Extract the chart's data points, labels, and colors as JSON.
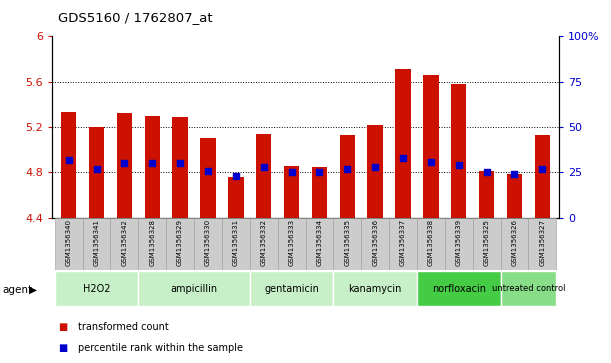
{
  "title": "GDS5160 / 1762807_at",
  "samples": [
    "GSM1356340",
    "GSM1356341",
    "GSM1356342",
    "GSM1356328",
    "GSM1356329",
    "GSM1356330",
    "GSM1356331",
    "GSM1356332",
    "GSM1356333",
    "GSM1356334",
    "GSM1356335",
    "GSM1356336",
    "GSM1356337",
    "GSM1356338",
    "GSM1356339",
    "GSM1356325",
    "GSM1356326",
    "GSM1356327"
  ],
  "transformed_count": [
    5.33,
    5.2,
    5.32,
    5.3,
    5.29,
    5.1,
    4.76,
    5.14,
    4.86,
    4.85,
    5.13,
    5.22,
    5.71,
    5.66,
    5.58,
    4.81,
    4.79,
    5.13
  ],
  "percentile_rank": [
    32,
    27,
    30,
    30,
    30,
    26,
    23,
    28,
    25,
    25,
    27,
    28,
    33,
    31,
    29,
    25,
    24,
    27
  ],
  "group_boundaries": [
    {
      "label": "H2O2",
      "start": 0,
      "end": 2,
      "color": "#c8f0c8"
    },
    {
      "label": "ampicillin",
      "start": 3,
      "end": 6,
      "color": "#c8f0c8"
    },
    {
      "label": "gentamicin",
      "start": 7,
      "end": 9,
      "color": "#c8f0c8"
    },
    {
      "label": "kanamycin",
      "start": 10,
      "end": 12,
      "color": "#c8f0c8"
    },
    {
      "label": "norfloxacin",
      "start": 13,
      "end": 15,
      "color": "#44cc44"
    },
    {
      "label": "untreated control",
      "start": 16,
      "end": 17,
      "color": "#88dd88"
    }
  ],
  "bar_color": "#cc1100",
  "dot_color": "#0000cc",
  "ylim_left": [
    4.4,
    6.0
  ],
  "ylim_right": [
    0,
    100
  ],
  "yticks_left": [
    4.4,
    4.8,
    5.2,
    5.6,
    6.0
  ],
  "yticks_right": [
    0,
    25,
    50,
    75,
    100
  ],
  "ytick_labels_left": [
    "4.4",
    "4.8",
    "5.2",
    "5.6",
    "6"
  ],
  "ytick_labels_right": [
    "0",
    "25",
    "50",
    "75",
    "100%"
  ],
  "grid_values": [
    4.8,
    5.2,
    5.6
  ],
  "legend_items": [
    {
      "label": "transformed count",
      "color": "#cc1100"
    },
    {
      "label": "percentile rank within the sample",
      "color": "#0000cc"
    }
  ],
  "baseline": 4.4,
  "tick_label_color_left": "#cc1100",
  "tick_label_color_right": "#0000cc",
  "sample_box_color": "#cccccc",
  "sample_box_edge": "#999999"
}
